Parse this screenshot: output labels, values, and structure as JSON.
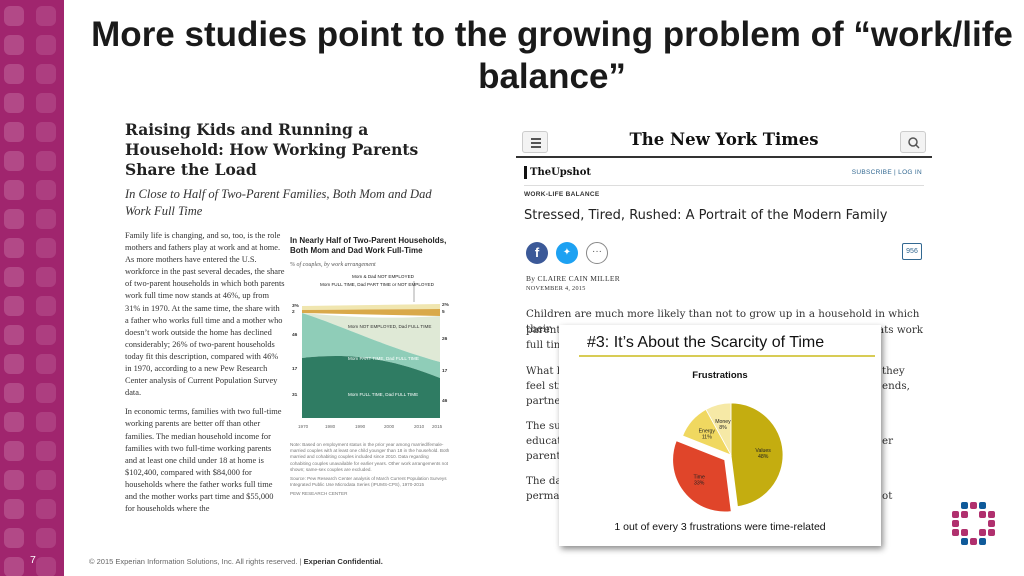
{
  "slide": {
    "title": "More studies point to the growing problem of “work/life balance”",
    "page_number": "7",
    "footer": "© 2015 Experian Information Solutions, Inc. All rights reserved. | ",
    "footer_bold": "Experian Confidential."
  },
  "pew": {
    "title": "Raising Kids and Running a Household: How Working Parents Share the Load",
    "subtitle": "In Close to Half of Two-Parent Families, Both Mom and Dad Work Full Time",
    "body": [
      "Family life is changing, and so, too, is the role mothers and fathers play at work and at home. As more mothers have entered the U.S. workforce in the past several decades, the share of two-parent households in which both parents work full time now stands at 46%, up from 31% in 1970. At the same time, the share with a father who works full time and a mother who doesn’t work outside the home has declined considerably; 26% of two-parent households today fit this description, compared with 46% in 1970, according to a new Pew Research Center analysis of Current Population Survey data.",
      "In economic terms, families with two full-time working parents are better off than other families. The median household income for families with two full-time working parents and at least one child under 18 at home is $102,400, compared with $84,000 for households where the father works full time and the mother works part time and $55,000 for households where the"
    ],
    "chart_title": "In Nearly Half of Two-Parent Households, Both Mom and Dad Work Full-Time",
    "chart_subtitle": "% of couples, by work arrangement",
    "legend_top": [
      "Mom & Dad NOT EMPLOYED",
      "Mom FULL TIME, Dad PART TIME or NOT EMPLOYED"
    ],
    "band_labels": [
      "Mom NOT EMPLOYED, Dad FULL TIME",
      "Mom PART TIME, Dad FULL TIME",
      "Mom FULL TIME, Dad FULL TIME"
    ],
    "left_values": [
      "3%",
      "2",
      "46",
      "17",
      "31"
    ],
    "right_values": [
      "2%",
      "5",
      "26",
      "17",
      "46"
    ],
    "x_ticks": [
      "1970",
      "1980",
      "1990",
      "2000",
      "2010",
      "2015"
    ],
    "note": "Note: Based on employment status in the prior year among married/female-married couples with at least one child younger than 18 in the household. Both married and cohabiting couples included since 2010. Data regarding cohabiting couples unavailable for earlier years. Other work arrangements not shown; same-sex couples are excluded.",
    "source": "Source: Pew Research Center analysis of March Current Population Surveys Integrated Public Use Microdata Series (IPUMS-CPS), 1970-2015",
    "org": "PEW RESEARCH CENTER"
  },
  "nyt": {
    "logo": "The New York Times",
    "section": "TheUpshot",
    "links": "SUBSCRIBE  |  LOG IN",
    "kicker": "WORK-LIFE BALANCE",
    "headline": "Stressed, Tired, Rushed: A Portrait of the Modern Family",
    "comments": "956",
    "byline": "By CLAIRE CAIN MILLER",
    "dateline": "NOVEMBER 4, 2015",
    "lead": "Children are much more likely than not to grow up in a household in which their",
    "fragments_left": [
      "parent",
      "full tim",
      "What h",
      "feel str",
      "partner",
      "The sur",
      "educate",
      "parent",
      "The da",
      "perman"
    ],
    "fragments_right": [
      "ats work",
      "they",
      "ends,",
      "er",
      "ot"
    ]
  },
  "card": {
    "title": "#3: It’s About the Scarcity of Time",
    "caption": "1 out of every 3 frustrations were time-related"
  },
  "chart_data": {
    "type": "pie",
    "title": "Frustrations",
    "slices": [
      {
        "label": "Values",
        "value": 48,
        "color": "#c4ad10"
      },
      {
        "label": "Time",
        "value": 33,
        "color": "#e0452a"
      },
      {
        "label": "Energy",
        "value": 11,
        "color": "#f0d860"
      },
      {
        "label": "Money",
        "value": 8,
        "color": "#f6e9a6"
      }
    ]
  },
  "colors": {
    "strip": "#a0256e",
    "accent_rule": "#d8cc55"
  }
}
